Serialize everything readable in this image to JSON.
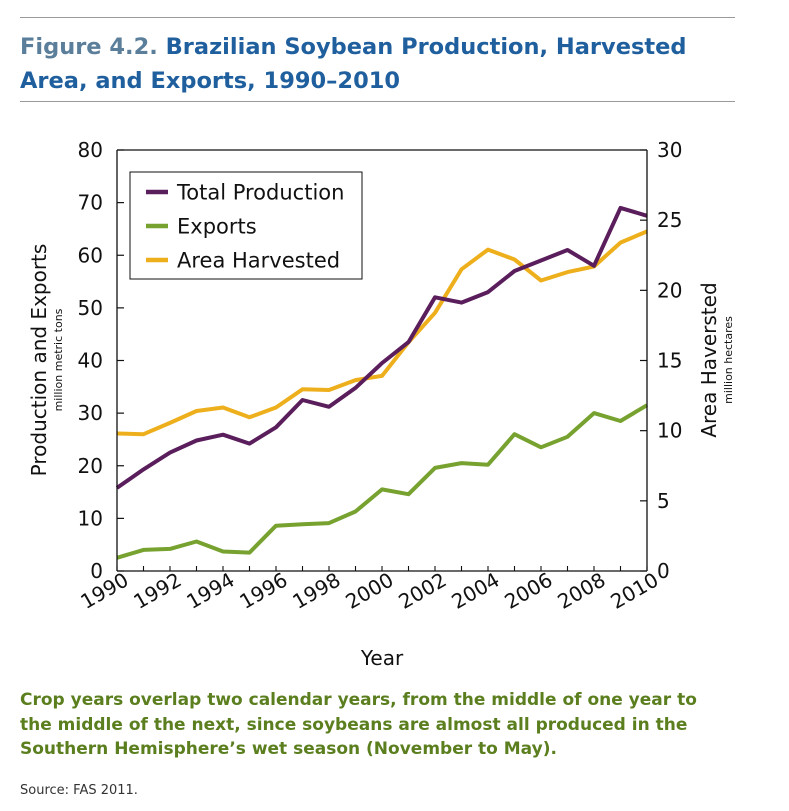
{
  "figure": {
    "label": "Figure 4.2.",
    "title": "Brazilian Soybean Production, Harvested Area, and Exports, 1990–2010"
  },
  "chart_data": {
    "type": "line",
    "xlabel": "Year",
    "ylabel_left": "Production and Exports",
    "ylabel_left_unit": "million metric tons",
    "ylabel_right": "Area Haversted",
    "ylabel_right_unit": "million hectares",
    "xlim": [
      1990,
      2010
    ],
    "ylim_left": [
      0,
      80
    ],
    "ylim_right": [
      0,
      30
    ],
    "x_ticks": [
      1990,
      1992,
      1994,
      1996,
      1998,
      2000,
      2002,
      2004,
      2006,
      2008,
      2010
    ],
    "y_ticks_left": [
      0,
      10,
      20,
      30,
      40,
      50,
      60,
      70,
      80
    ],
    "y_ticks_right": [
      0,
      5,
      10,
      15,
      20,
      25,
      30
    ],
    "grid": false,
    "legend_position": "top-left",
    "x": [
      1990,
      1991,
      1992,
      1993,
      1994,
      1995,
      1996,
      1997,
      1998,
      1999,
      2000,
      2001,
      2002,
      2003,
      2004,
      2005,
      2006,
      2007,
      2008,
      2009,
      2010
    ],
    "series": [
      {
        "name": "Total Production",
        "axis": "left",
        "color": "#5a1e5c",
        "values": [
          15.8,
          19.3,
          22.5,
          24.8,
          25.9,
          24.2,
          27.3,
          32.5,
          31.2,
          34.8,
          39.5,
          43.5,
          52.0,
          51.0,
          53.0,
          57.0,
          59.0,
          61.0,
          58.0,
          69.0,
          67.5
        ]
      },
      {
        "name": "Exports",
        "axis": "left",
        "color": "#77a230",
        "values": [
          2.5,
          4.0,
          4.2,
          5.6,
          3.7,
          3.5,
          8.6,
          8.9,
          9.1,
          11.3,
          15.5,
          14.6,
          19.6,
          20.5,
          20.2,
          26.0,
          23.5,
          25.5,
          30.0,
          28.5,
          31.5
        ]
      },
      {
        "name": "Area Harvested",
        "axis": "right",
        "color": "#eeaf1c",
        "values": [
          9.8,
          9.75,
          10.55,
          11.4,
          11.65,
          10.95,
          11.65,
          12.95,
          12.9,
          13.6,
          13.9,
          16.3,
          18.4,
          21.5,
          22.9,
          22.2,
          20.7,
          21.3,
          21.7,
          23.4,
          24.2
        ]
      }
    ]
  },
  "caption": "Crop years overlap two calendar years, from the middle of one year to the middle of the next, since soybeans are almost all produced in the Southern Hemisphere’s wet season (November to May).",
  "source": "Source: FAS 2011."
}
